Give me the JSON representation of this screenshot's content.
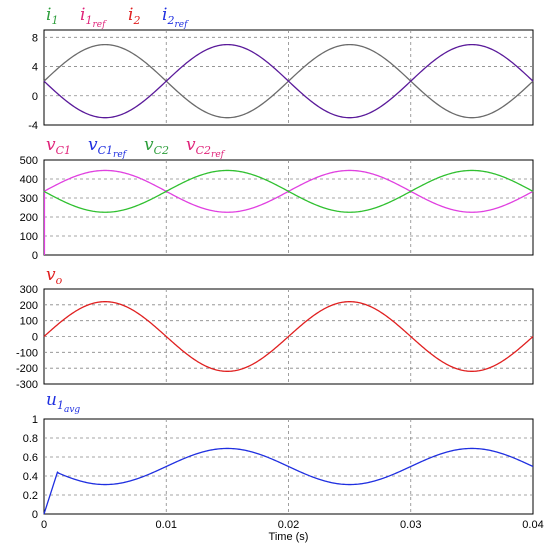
{
  "chart_data": [
    {
      "type": "line",
      "legend": [
        {
          "base": "i",
          "sub": "1",
          "color": "#2e9e3c"
        },
        {
          "base": "i",
          "sub": "1",
          "sub2": "ref",
          "color": "#e0247a"
        },
        {
          "base": "i",
          "sub": "2",
          "color": "#e02020"
        },
        {
          "base": "i",
          "sub": "2",
          "sub2": "ref",
          "color": "#1f2fe0"
        }
      ],
      "ylim": [
        -4,
        9
      ],
      "yticks": [
        "8",
        "4",
        "0",
        "-4"
      ],
      "ytick_values": [
        8,
        4,
        0,
        -4
      ],
      "xlim": [
        0,
        0.04
      ],
      "grid": true,
      "series": [
        {
          "color": "#6b6b6b",
          "values": {
            "offset": 2,
            "amplitude": 5,
            "frequency_hz": 50,
            "phase": "sin"
          }
        },
        {
          "color": "#5a1a9a",
          "values": {
            "offset": 2,
            "amplitude": -5,
            "frequency_hz": 50,
            "phase": "sin",
            "start": 0.0
          }
        }
      ]
    },
    {
      "type": "line",
      "legend": [
        {
          "base": "v",
          "sub": "C1",
          "color": "#e0247a"
        },
        {
          "base": "v",
          "sub": "C1",
          "sub2": "ref",
          "color": "#1f2fe0"
        },
        {
          "base": "v",
          "sub": "C2",
          "color": "#2e9e3c"
        },
        {
          "base": "v",
          "sub": "C2",
          "sub2": "ref",
          "color": "#e0247a"
        }
      ],
      "ylim": [
        0,
        500
      ],
      "yticks": [
        "500",
        "400",
        "300",
        "200",
        "100",
        "0"
      ],
      "ytick_values": [
        500,
        400,
        300,
        200,
        100,
        0
      ],
      "xlim": [
        0,
        0.04
      ],
      "grid": true,
      "series": [
        {
          "color": "#e040e0",
          "values": {
            "offset": 335,
            "amplitude": 110,
            "frequency_hz": 50,
            "phase": "sin",
            "start_value": 0
          }
        },
        {
          "color": "#30c030",
          "values": {
            "offset": 335,
            "amplitude": -110,
            "frequency_hz": 50,
            "phase": "sin"
          }
        }
      ]
    },
    {
      "type": "line",
      "legend": [
        {
          "base": "v",
          "sub": "o",
          "color": "#e02020"
        }
      ],
      "ylim": [
        -300,
        300
      ],
      "yticks": [
        "300",
        "200",
        "100",
        "0",
        "-100",
        "-200",
        "-300"
      ],
      "ytick_values": [
        300,
        200,
        100,
        0,
        -100,
        -200,
        -300
      ],
      "xlim": [
        0,
        0.04
      ],
      "grid": true,
      "series": [
        {
          "color": "#e02020",
          "values": {
            "offset": 0,
            "amplitude": 220,
            "frequency_hz": 50,
            "phase": "sin"
          }
        }
      ]
    },
    {
      "type": "line",
      "legend": [
        {
          "base": "u",
          "sub": "1",
          "sub2": "avg",
          "color": "#1f2fe0"
        }
      ],
      "ylim": [
        0,
        1
      ],
      "yticks": [
        "1",
        "0.8",
        "0.6",
        "0.4",
        "0.2",
        "0"
      ],
      "ytick_values": [
        1,
        0.8,
        0.6,
        0.4,
        0.2,
        0
      ],
      "xlim": [
        0,
        0.04
      ],
      "xticks": [
        "0",
        "0.01",
        "0.02",
        "0.03",
        "0.04"
      ],
      "xtick_values": [
        0,
        0.01,
        0.02,
        0.03,
        0.04
      ],
      "xlabel": "Time (s)",
      "grid": true,
      "series": [
        {
          "color": "#1f2fe0",
          "values": {
            "offset": 0.5,
            "amplitude": -0.19,
            "frequency_hz": 50,
            "phase": "sin",
            "startup_peak": 0.48
          }
        }
      ]
    }
  ]
}
